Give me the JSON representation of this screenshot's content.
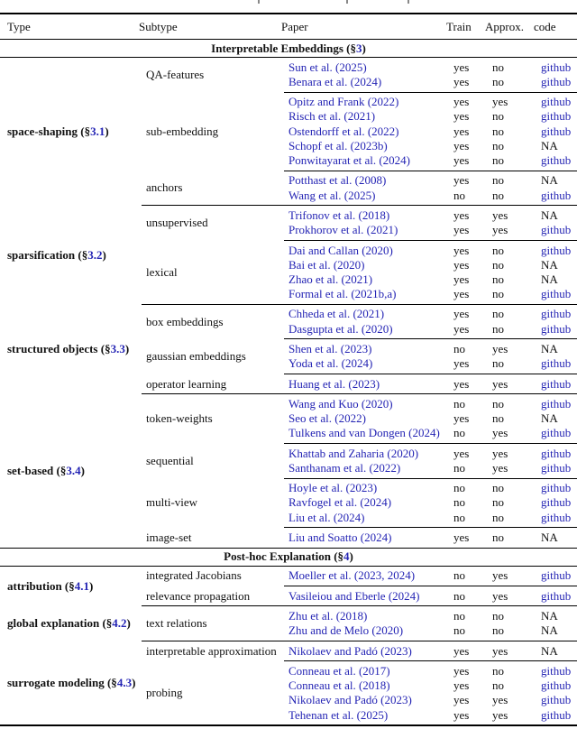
{
  "link_color": "#2424b4",
  "table": {
    "columns": [
      "Type",
      "Subtype",
      "Paper",
      "Train",
      "Approx.",
      "code"
    ],
    "sections": [
      {
        "title": {
          "prefix": "Interpretable Embeddings (§",
          "section": "3",
          "suffix": ")"
        },
        "types": [
          {
            "label": {
              "prefix": "space-shaping (§",
              "section": "3.1",
              "suffix": ")"
            },
            "subtypes": [
              {
                "label": "QA-features",
                "papers": [
                  {
                    "cite": "Sun et al. (2025)",
                    "train": "yes",
                    "approx": "no",
                    "code": "github"
                  },
                  {
                    "cite": "Benara et al. (2024)",
                    "train": "yes",
                    "approx": "no",
                    "code": "github"
                  }
                ]
              },
              {
                "label": "sub-embedding",
                "papers": [
                  {
                    "cite": "Opitz and Frank (2022)",
                    "train": "yes",
                    "approx": "yes",
                    "code": "github"
                  },
                  {
                    "cite": "Risch et al. (2021)",
                    "train": "yes",
                    "approx": "no",
                    "code": "github"
                  },
                  {
                    "cite": "Ostendorff et al. (2022)",
                    "train": "yes",
                    "approx": "no",
                    "code": "github"
                  },
                  {
                    "cite": "Schopf et al. (2023b)",
                    "train": "yes",
                    "approx": "no",
                    "code": "NA"
                  },
                  {
                    "cite": "Ponwitayarat et al. (2024)",
                    "train": "yes",
                    "approx": "no",
                    "code": "github"
                  }
                ]
              },
              {
                "label": "anchors",
                "papers": [
                  {
                    "cite": "Potthast et al. (2008)",
                    "train": "yes",
                    "approx": "no",
                    "code": "NA"
                  },
                  {
                    "cite": "Wang et al. (2025)",
                    "train": "no",
                    "approx": "no",
                    "code": "github"
                  }
                ]
              }
            ]
          },
          {
            "label": {
              "prefix": "sparsification (§",
              "section": "3.2",
              "suffix": ")"
            },
            "subtypes": [
              {
                "label": "unsupervised",
                "papers": [
                  {
                    "cite": "Trifonov et al. (2018)",
                    "train": "yes",
                    "approx": "yes",
                    "code": "NA"
                  },
                  {
                    "cite": "Prokhorov et al. (2021)",
                    "train": "yes",
                    "approx": "yes",
                    "code": "github"
                  }
                ]
              },
              {
                "label": "lexical",
                "papers": [
                  {
                    "cite": "Dai and Callan (2020)",
                    "train": "yes",
                    "approx": "no",
                    "code": "github"
                  },
                  {
                    "cite": "Bai et al. (2020)",
                    "train": "yes",
                    "approx": "no",
                    "code": "NA"
                  },
                  {
                    "cite": "Zhao et al. (2021)",
                    "train": "yes",
                    "approx": "no",
                    "code": "NA"
                  },
                  {
                    "cite": "Formal et al. (2021b,a)",
                    "train": "yes",
                    "approx": "no",
                    "code": "github"
                  }
                ]
              }
            ]
          },
          {
            "label": {
              "prefix": "structured objects (§",
              "section": "3.3",
              "suffix": ")"
            },
            "subtypes": [
              {
                "label": "box embeddings",
                "papers": [
                  {
                    "cite": "Chheda et al. (2021)",
                    "train": "yes",
                    "approx": "no",
                    "code": "github"
                  },
                  {
                    "cite": "Dasgupta et al. (2020)",
                    "train": "yes",
                    "approx": "no",
                    "code": "github"
                  }
                ]
              },
              {
                "label": "gaussian embeddings",
                "papers": [
                  {
                    "cite": "Shen et al. (2023)",
                    "train": "no",
                    "approx": "yes",
                    "code": "NA"
                  },
                  {
                    "cite": "Yoda et al. (2024)",
                    "train": "yes",
                    "approx": "no",
                    "code": "github"
                  }
                ]
              },
              {
                "label": "operator learning",
                "papers": [
                  {
                    "cite": "Huang et al. (2023)",
                    "train": "yes",
                    "approx": "yes",
                    "code": "github"
                  }
                ]
              }
            ]
          },
          {
            "label": {
              "prefix": "set-based (§",
              "section": "3.4",
              "suffix": ")"
            },
            "subtypes": [
              {
                "label": "token-weights",
                "papers": [
                  {
                    "cite": "Wang and Kuo (2020)",
                    "train": "no",
                    "approx": "no",
                    "code": "github"
                  },
                  {
                    "cite": "Seo et al. (2022)",
                    "train": "yes",
                    "approx": "no",
                    "code": "NA"
                  },
                  {
                    "cite": "Tulkens and van Dongen (2024)",
                    "train": "no",
                    "approx": "yes",
                    "code": "github"
                  }
                ]
              },
              {
                "label": "sequential",
                "papers": [
                  {
                    "cite": "Khattab and Zaharia (2020)",
                    "train": "yes",
                    "approx": "yes",
                    "code": "github"
                  },
                  {
                    "cite": "Santhanam et al. (2022)",
                    "train": "no",
                    "approx": "yes",
                    "code": "github"
                  }
                ]
              },
              {
                "label": "multi-view",
                "papers": [
                  {
                    "cite": "Hoyle et al. (2023)",
                    "train": "no",
                    "approx": "no",
                    "code": "github"
                  },
                  {
                    "cite": "Ravfogel et al. (2024)",
                    "train": "no",
                    "approx": "no",
                    "code": "github"
                  },
                  {
                    "cite": "Liu et al. (2024)",
                    "train": "no",
                    "approx": "no",
                    "code": "github"
                  }
                ]
              },
              {
                "label": "image-set",
                "papers": [
                  {
                    "cite": "Liu and Soatto (2024)",
                    "train": "yes",
                    "approx": "no",
                    "code": "NA"
                  }
                ]
              }
            ]
          }
        ]
      },
      {
        "title": {
          "prefix": "Post-hoc Explanation (§",
          "section": "4",
          "suffix": ")"
        },
        "types": [
          {
            "label": {
              "prefix": "attribution (§",
              "section": "4.1",
              "suffix": ")"
            },
            "subtypes": [
              {
                "label": "integrated Jacobians",
                "papers": [
                  {
                    "cite": "Moeller et al. (2023, 2024)",
                    "train": "no",
                    "approx": "yes",
                    "code": "github"
                  }
                ]
              },
              {
                "label": "relevance propagation",
                "papers": [
                  {
                    "cite": "Vasileiou and Eberle (2024)",
                    "train": "no",
                    "approx": "yes",
                    "code": "github"
                  }
                ]
              }
            ]
          },
          {
            "label": {
              "prefix": "global explanation (§",
              "section": "4.2",
              "suffix": ")"
            },
            "subtypes": [
              {
                "label": "text relations",
                "papers": [
                  {
                    "cite": "Zhu et al. (2018)",
                    "train": "no",
                    "approx": "no",
                    "code": "NA"
                  },
                  {
                    "cite": "Zhu and de Melo (2020)",
                    "train": "no",
                    "approx": "no",
                    "code": "NA"
                  }
                ]
              }
            ]
          },
          {
            "label": {
              "prefix": "surrogate modeling (§",
              "section": "4.3",
              "suffix": ")"
            },
            "subtypes": [
              {
                "label": "interpretable approximation",
                "papers": [
                  {
                    "cite": "Nikolaev and Padó (2023)",
                    "train": "yes",
                    "approx": "yes",
                    "code": "NA"
                  }
                ]
              },
              {
                "label": "probing",
                "papers": [
                  {
                    "cite": "Conneau et al. (2017)",
                    "train": "yes",
                    "approx": "no",
                    "code": "github"
                  },
                  {
                    "cite": "Conneau et al. (2018)",
                    "train": "yes",
                    "approx": "no",
                    "code": "github"
                  },
                  {
                    "cite": "Nikolaev and Padó (2023)",
                    "train": "yes",
                    "approx": "yes",
                    "code": "github"
                  },
                  {
                    "cite": "Tehenan et al. (2025)",
                    "train": "yes",
                    "approx": "yes",
                    "code": "github"
                  }
                ]
              }
            ]
          }
        ]
      }
    ]
  }
}
